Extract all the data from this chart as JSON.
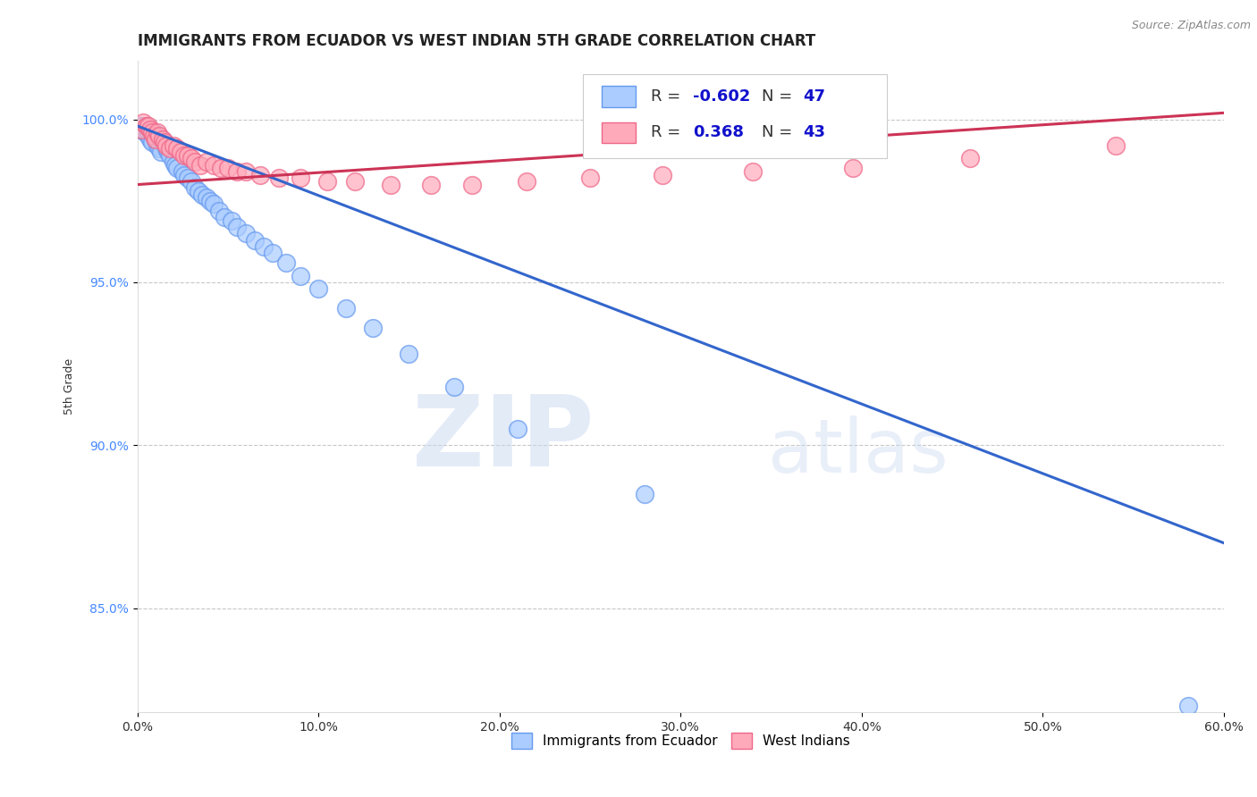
{
  "title": "IMMIGRANTS FROM ECUADOR VS WEST INDIAN 5TH GRADE CORRELATION CHART",
  "source_text": "Source: ZipAtlas.com",
  "ylabel": "5th Grade",
  "xlim": [
    0.0,
    0.6
  ],
  "ylim": [
    0.818,
    1.018
  ],
  "xtick_labels": [
    "0.0%",
    "",
    "",
    "",
    "",
    "",
    "",
    "",
    "",
    "",
    "",
    "",
    "10.0%",
    "",
    "",
    "",
    "",
    "",
    "",
    "",
    "",
    "",
    "",
    "",
    "20.0%",
    "",
    "",
    "",
    "",
    "",
    "",
    "",
    "",
    "",
    "",
    "",
    "30.0%",
    "",
    "",
    "",
    "",
    "",
    "",
    "",
    "",
    "",
    "",
    "",
    "40.0%",
    "",
    "",
    "",
    "",
    "",
    "",
    "",
    "",
    "",
    "",
    "",
    "50.0%",
    "",
    "",
    "",
    "",
    "",
    "",
    "",
    "",
    "",
    "",
    "",
    "60.0%"
  ],
  "xtick_vals": [
    0.0,
    0.05,
    0.1,
    0.15,
    0.2,
    0.25,
    0.3,
    0.35,
    0.4,
    0.45,
    0.5,
    0.55,
    0.6
  ],
  "xtick_display": [
    "0.0%",
    "10.0%",
    "20.0%",
    "30.0%",
    "40.0%",
    "50.0%",
    "60.0%"
  ],
  "xtick_display_vals": [
    0.0,
    0.1,
    0.2,
    0.3,
    0.4,
    0.5,
    0.6
  ],
  "ytick_labels": [
    "85.0%",
    "90.0%",
    "95.0%",
    "100.0%"
  ],
  "ytick_vals": [
    0.85,
    0.9,
    0.95,
    1.0
  ],
  "grid_color": "#c8c8c8",
  "background_color": "#ffffff",
  "ecuador_color": "#aaccff",
  "ecuador_edge": "#6699ee",
  "westindian_color": "#ffaabb",
  "westindian_edge": "#ee6688",
  "R_ecuador": -0.602,
  "N_ecuador": 47,
  "R_westindian": 0.368,
  "N_westindian": 43,
  "legend_label_ecuador": "Immigrants from Ecuador",
  "legend_label_westindian": "West Indians",
  "watermark_zip": "ZIP",
  "watermark_atlas": "atlas",
  "title_fontsize": 12,
  "axis_label_fontsize": 9,
  "tick_fontsize": 10,
  "ecuador_scatter_x": [
    0.002,
    0.003,
    0.004,
    0.005,
    0.006,
    0.007,
    0.008,
    0.009,
    0.01,
    0.011,
    0.012,
    0.013,
    0.015,
    0.016,
    0.017,
    0.018,
    0.02,
    0.021,
    0.022,
    0.025,
    0.026,
    0.028,
    0.03,
    0.032,
    0.034,
    0.036,
    0.038,
    0.04,
    0.042,
    0.045,
    0.048,
    0.052,
    0.055,
    0.06,
    0.065,
    0.07,
    0.075,
    0.082,
    0.09,
    0.1,
    0.115,
    0.13,
    0.15,
    0.175,
    0.21,
    0.28,
    0.58
  ],
  "ecuador_scatter_y": [
    0.998,
    0.997,
    0.996,
    0.998,
    0.995,
    0.994,
    0.993,
    0.996,
    0.994,
    0.992,
    0.991,
    0.99,
    0.993,
    0.991,
    0.99,
    0.989,
    0.987,
    0.986,
    0.985,
    0.984,
    0.983,
    0.982,
    0.981,
    0.979,
    0.978,
    0.977,
    0.976,
    0.975,
    0.974,
    0.972,
    0.97,
    0.969,
    0.967,
    0.965,
    0.963,
    0.961,
    0.959,
    0.956,
    0.952,
    0.948,
    0.942,
    0.936,
    0.928,
    0.918,
    0.905,
    0.885,
    0.82
  ],
  "westindian_scatter_x": [
    0.002,
    0.003,
    0.005,
    0.006,
    0.007,
    0.008,
    0.009,
    0.01,
    0.011,
    0.012,
    0.014,
    0.015,
    0.016,
    0.018,
    0.02,
    0.022,
    0.024,
    0.026,
    0.028,
    0.03,
    0.032,
    0.035,
    0.038,
    0.042,
    0.046,
    0.05,
    0.055,
    0.06,
    0.068,
    0.078,
    0.09,
    0.105,
    0.12,
    0.14,
    0.162,
    0.185,
    0.215,
    0.25,
    0.29,
    0.34,
    0.395,
    0.46,
    0.54
  ],
  "westindian_scatter_y": [
    0.997,
    0.999,
    0.998,
    0.998,
    0.997,
    0.996,
    0.995,
    0.994,
    0.996,
    0.995,
    0.994,
    0.993,
    0.992,
    0.991,
    0.992,
    0.991,
    0.99,
    0.989,
    0.989,
    0.988,
    0.987,
    0.986,
    0.987,
    0.986,
    0.985,
    0.985,
    0.984,
    0.984,
    0.983,
    0.982,
    0.982,
    0.981,
    0.981,
    0.98,
    0.98,
    0.98,
    0.981,
    0.982,
    0.983,
    0.984,
    0.985,
    0.988,
    0.992
  ],
  "ecuador_line_x": [
    0.0,
    0.6
  ],
  "ecuador_line_y": [
    0.998,
    0.87
  ],
  "westindian_line_x": [
    0.0,
    0.6
  ],
  "westindian_line_y": [
    0.98,
    1.002
  ],
  "legend_R_color": "#1111cc",
  "legend_N_color": "#1111cc",
  "ytick_color": "#4488ff"
}
